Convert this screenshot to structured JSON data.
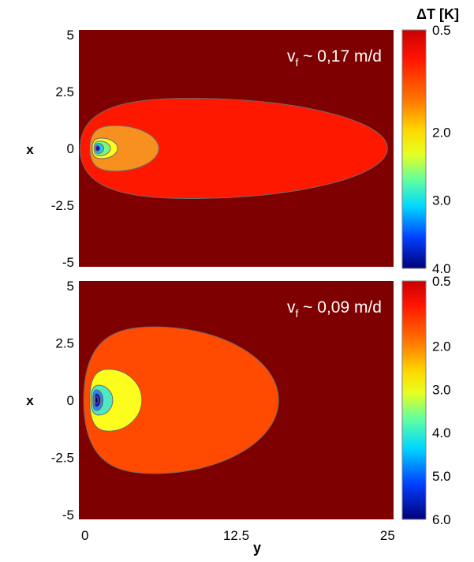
{
  "chart_data": [
    {
      "type": "heatmap",
      "subtype": "filled-contour",
      "annotation_main": "v",
      "annotation_sub": "f",
      "annotation_rest": " ~ 0,17 m/d",
      "xlabel": "y",
      "ylabel": "x",
      "xlim": [
        -0.5,
        25.5
      ],
      "ylim": [
        -5.2,
        5.2
      ],
      "ytick_labels": [
        "5",
        "2.5",
        "0",
        "-2.5",
        "-5"
      ],
      "ytick_values": [
        5,
        2.5,
        0,
        -2.5,
        -5
      ],
      "xtick_labels": [
        "0",
        "12.5",
        "25"
      ],
      "xtick_values": [
        0,
        12.5,
        25
      ],
      "source_y": 1.0,
      "source_x": 0.0,
      "contour_extents": [
        {
          "level": 0.5,
          "y_min": -0.4,
          "y_max": 25.0,
          "x_half": 2.2
        },
        {
          "level": 1.5,
          "y_min": 0.4,
          "y_max": 6.1,
          "x_half": 1.0
        },
        {
          "level": 2.5,
          "y_min": 0.6,
          "y_max": 2.7,
          "x_half": 0.45
        },
        {
          "level": 3.0,
          "y_min": 0.75,
          "y_max": 2.1,
          "x_half": 0.32
        },
        {
          "level": 3.5,
          "y_min": 0.85,
          "y_max": 1.55,
          "x_half": 0.22
        },
        {
          "level": 4.0,
          "y_min": 0.9,
          "y_max": 1.25,
          "x_half": 0.12
        }
      ],
      "colorbar": {
        "title": "ΔT [K]",
        "range": [
          0.5,
          4.0
        ],
        "tick_labels": [
          "0.5",
          "2.0",
          "3.0",
          "4.0"
        ],
        "tick_values": [
          0.5,
          2.0,
          3.0,
          4.0
        ]
      },
      "colors": {
        "background": "#7f0000",
        "levels": [
          "#ff1800",
          "#f7901f",
          "#fdfd1d",
          "#7ff77f",
          "#20c8ee",
          "#1616c8",
          "#000080"
        ]
      }
    },
    {
      "type": "heatmap",
      "subtype": "filled-contour",
      "annotation_main": "v",
      "annotation_sub": "f",
      "annotation_rest": " ~ 0,09 m/d",
      "xlabel": "y",
      "ylabel": "x",
      "xlim": [
        -0.5,
        25.5
      ],
      "ylim": [
        -5.2,
        5.2
      ],
      "ytick_labels": [
        "5",
        "2.5",
        "0",
        "-2.5",
        "-5"
      ],
      "ytick_values": [
        5,
        2.5,
        0,
        -2.5,
        -5
      ],
      "xtick_labels": [
        "0",
        "12.5",
        "25"
      ],
      "xtick_values": [
        0,
        12.5,
        25
      ],
      "source_y": 1.0,
      "source_x": 0.0,
      "contour_extents": [
        {
          "level": 0.5,
          "y_min": -0.1,
          "y_max": 16.0,
          "x_half": 3.2
        },
        {
          "level": 2.0,
          "y_min": 0.4,
          "y_max": 4.7,
          "x_half": 1.35
        },
        {
          "level": 3.0,
          "y_min": 0.5,
          "y_max": 2.3,
          "x_half": 0.65
        },
        {
          "level": 4.0,
          "y_min": 0.65,
          "y_max": 1.5,
          "x_half": 0.45
        },
        {
          "level": 5.0,
          "y_min": 0.78,
          "y_max": 1.3,
          "x_half": 0.3
        },
        {
          "level": 6.0,
          "y_min": 0.85,
          "y_max": 1.1,
          "x_half": 0.15
        }
      ],
      "colorbar": {
        "title": "",
        "range": [
          0.5,
          6.0
        ],
        "tick_labels": [
          "0.5",
          "2.0",
          "3.0",
          "4.0",
          "5.0",
          "6.0"
        ],
        "tick_values": [
          0.5,
          2.0,
          3.0,
          4.0,
          5.0,
          6.0
        ]
      },
      "colors": {
        "background": "#7f0000",
        "levels": [
          "#ff4a00",
          "#fdfd1d",
          "#4fe8c0",
          "#1e8cf0",
          "#1414c0",
          "#000070"
        ]
      }
    }
  ]
}
